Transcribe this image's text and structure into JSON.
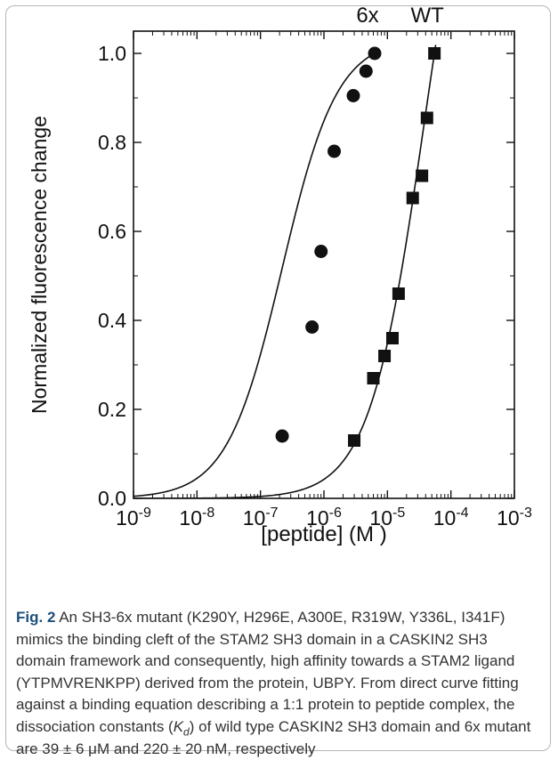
{
  "chart_data": {
    "type": "scatter",
    "xscale": "log",
    "xlim_exponents": [
      -9,
      -3
    ],
    "ylim": [
      0.0,
      1.05
    ],
    "xlabel": "[peptide] (M )",
    "ylabel": "Normalized fluorescence change",
    "x_tick_labels": [
      {
        "base": "10",
        "exp": "-9"
      },
      {
        "base": "10",
        "exp": "-8"
      },
      {
        "base": "10",
        "exp": "-7"
      },
      {
        "base": "10",
        "exp": "-6"
      },
      {
        "base": "10",
        "exp": "-5"
      },
      {
        "base": "10",
        "exp": "-4"
      },
      {
        "base": "10",
        "exp": "-3"
      }
    ],
    "y_ticks": [
      0.0,
      0.2,
      0.4,
      0.6,
      0.8,
      1.0
    ],
    "y_tick_labels": [
      "0.0",
      "0.2",
      "0.4",
      "0.6",
      "0.8",
      "1.0"
    ],
    "series": [
      {
        "name": "6x",
        "marker": "circle",
        "x": [
          2.2e-07,
          6.5e-07,
          9e-07,
          1.45e-06,
          2.9e-06,
          4.6e-06,
          6.3e-06
        ],
        "y": [
          0.14,
          0.385,
          0.555,
          0.78,
          0.905,
          0.96,
          1.0
        ],
        "fit_kd": 2.2e-07
      },
      {
        "name": "WT",
        "marker": "square",
        "x": [
          3e-06,
          6e-06,
          9e-06,
          1.2e-05,
          1.5e-05,
          2.5e-05,
          3.5e-05,
          4.2e-05,
          5.5e-05
        ],
        "y": [
          0.13,
          0.27,
          0.32,
          0.36,
          0.46,
          0.675,
          0.725,
          0.855,
          1.0
        ],
        "fit_kd": 3.9e-05
      }
    ]
  },
  "caption": {
    "label": "Fig. 2",
    "text_before_kd": " An SH3-6x mutant (K290Y, H296E, A300E, R319W, Y336L, I341F) mimics the binding cleft of the STAM2 SH3 domain in a CASKIN2 SH3 domain framework and consequently, high affinity towards a STAM2 ligand (YTPMVRENKPP) derived from the protein, UBPY. From direct curve fitting against a binding equation describing a 1:1 protein to peptide complex, the dissociation constants (",
    "kd_symbol": "K",
    "kd_subscript": "d",
    "text_after_kd": ") of wild type CASKIN2 SH3 domain and 6x mutant are 39 ± 6 μM and 220 ± 20 nM, respectively"
  }
}
